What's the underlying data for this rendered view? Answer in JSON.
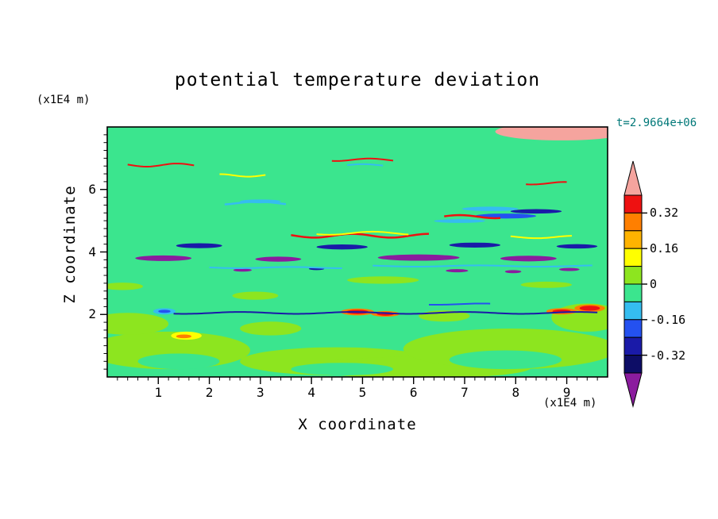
{
  "figure": {
    "title": "potential temperature deviation",
    "time_label": "t=2.9664e+06",
    "time_label_color": "#007878",
    "x_axis": {
      "label": "X coordinate",
      "unit_label": "(x1E4 m)",
      "min": 0,
      "max": 9.8,
      "major_ticks": [
        "1",
        "2",
        "3",
        "4",
        "5",
        "6",
        "7",
        "8",
        "9"
      ],
      "major_tick_values": [
        1,
        2,
        3,
        4,
        5,
        6,
        7,
        8,
        9
      ],
      "minor_step": 0.2
    },
    "z_axis": {
      "label": "Z coordinate",
      "unit_label": "(x1E4 m)",
      "min": 0,
      "max": 8,
      "major_ticks": [
        "2",
        "4",
        "6"
      ],
      "major_tick_values": [
        2,
        4,
        6
      ],
      "minor_step": 0.25
    },
    "colorbar": {
      "labels": [
        "0.32",
        "0.16",
        "0",
        "-0.16",
        "-0.32"
      ],
      "segment_colors_top_to_bottom": [
        "red",
        "orange",
        "amber",
        "yellow",
        "chartreuse",
        "mint",
        "cyan",
        "blue",
        "navy",
        "indigo"
      ],
      "arrow_top": "pink",
      "arrow_bottom": "purple"
    }
  },
  "palette": {
    "pink": "#F5A49E",
    "red": "#EE1111",
    "orange": "#FF7F00",
    "amber": "#FFB300",
    "yellow": "#FFFF00",
    "chartreuse": "#8DE51F",
    "mint": "#3BE58E",
    "cyan": "#35BDF0",
    "blue": "#2451F0",
    "navy": "#1A1AA8",
    "indigo": "#0D0D66",
    "purple": "#8B1C9E"
  },
  "chart_data": {
    "type": "heatmap",
    "title": "potential temperature deviation",
    "xlabel": "X coordinate (x1E4 m)",
    "ylabel": "Z coordinate (x1E4 m)",
    "time_annotation": "t=2.9664e+06",
    "x_range": [
      0,
      9.8
    ],
    "z_range": [
      0,
      8
    ],
    "contour_levels": [
      -0.4,
      -0.32,
      -0.24,
      -0.16,
      -0.08,
      0,
      0.08,
      0.16,
      0.24,
      0.32,
      0.4
    ],
    "level_colors_low_to_high": [
      "purple",
      "indigo",
      "navy",
      "blue",
      "cyan",
      "mint",
      "chartreuse",
      "yellow",
      "amber",
      "orange",
      "red",
      "pink"
    ],
    "description": "Vertical cross-section of potential temperature deviation: wavy alternating pink (>0.4) and purple (<-0.4) gravity-wave layers above z=4.4, a strong blue negative band near z=4.1, and near-zero green (mint/chartreuse) field below z=3.5 with small warm/cold anomalies near z=2.",
    "field": {
      "base_color": "mint",
      "layers": [
        {
          "color": "purple",
          "to": 7.68,
          "amp": 0.12,
          "wl": 2.6,
          "ph": 0.5
        },
        {
          "color": "pink",
          "to": 7.34,
          "amp": 0.13,
          "wl": 2.2,
          "ph": 2.1
        },
        {
          "color": "purple",
          "to": 7.0,
          "amp": 0.12,
          "wl": 2.9,
          "ph": 4.0
        },
        {
          "color": "pink",
          "to": 6.66,
          "amp": 0.14,
          "wl": 1.9,
          "ph": 1.2
        },
        {
          "color": "purple",
          "to": 6.32,
          "amp": 0.12,
          "wl": 2.4,
          "ph": 5.3
        },
        {
          "color": "pink",
          "to": 5.99,
          "amp": 0.15,
          "wl": 2.1,
          "ph": 3.3
        },
        {
          "color": "purple",
          "to": 5.66,
          "amp": 0.13,
          "wl": 2.7,
          "ph": 0.2
        },
        {
          "color": "pink",
          "to": 5.33,
          "amp": 0.14,
          "wl": 1.8,
          "ph": 4.6
        },
        {
          "color": "purple",
          "to": 5.0,
          "amp": 0.13,
          "wl": 2.3,
          "ph": 2.8
        },
        {
          "color": "pink",
          "to": 4.7,
          "amp": 0.12,
          "wl": 2.0,
          "ph": 5.8
        },
        {
          "color": "purple",
          "to": 4.45,
          "amp": 0.08,
          "wl": 2.5,
          "ph": 1.6
        },
        {
          "color": "cyan",
          "to": 4.38,
          "amp": 0.04,
          "wl": 3.0,
          "ph": 0.9
        },
        {
          "color": "blue",
          "to": 4.07,
          "amp": 0.04,
          "wl": 3.2,
          "ph": 2.2
        },
        {
          "color": "cyan",
          "to": 3.99,
          "amp": 0.03,
          "wl": 2.8,
          "ph": 3.9
        },
        {
          "color": "pink",
          "to": 3.63,
          "amp": 0.07,
          "wl": 2.4,
          "ph": 1.1
        },
        {
          "color": "chartreuse",
          "to": 3.54,
          "amp": 0.05,
          "wl": 2.6,
          "ph": 4.8
        }
      ],
      "spots": [
        {
          "color": "pink",
          "x": 8.9,
          "z": 7.85,
          "rx": 1.3,
          "rz": 0.28
        },
        {
          "color": "chartreuse",
          "x": 1.2,
          "z": 0.85,
          "rx": 1.6,
          "rz": 0.6
        },
        {
          "color": "chartreuse",
          "x": 0.4,
          "z": 1.7,
          "rx": 0.8,
          "rz": 0.35
        },
        {
          "color": "chartreuse",
          "x": 4.5,
          "z": 0.5,
          "rx": 1.9,
          "rz": 0.45
        },
        {
          "color": "chartreuse",
          "x": 6.1,
          "z": 0.3,
          "rx": 2.2,
          "rz": 0.35
        },
        {
          "color": "chartreuse",
          "x": 7.9,
          "z": 0.9,
          "rx": 2.1,
          "rz": 0.65
        },
        {
          "color": "chartreuse",
          "x": 9.4,
          "z": 1.9,
          "rx": 0.7,
          "rz": 0.45
        },
        {
          "color": "chartreuse",
          "x": 3.2,
          "z": 1.55,
          "rx": 0.6,
          "rz": 0.22
        },
        {
          "color": "chartreuse",
          "x": 6.6,
          "z": 1.95,
          "rx": 0.5,
          "rz": 0.18
        },
        {
          "color": "chartreuse",
          "x": 2.9,
          "z": 2.6,
          "rx": 0.45,
          "rz": 0.13
        },
        {
          "color": "chartreuse",
          "x": 5.4,
          "z": 3.1,
          "rx": 0.7,
          "rz": 0.12
        },
        {
          "color": "chartreuse",
          "x": 8.6,
          "z": 2.95,
          "rx": 0.5,
          "rz": 0.1
        },
        {
          "color": "chartreuse",
          "x": 0.3,
          "z": 2.9,
          "rx": 0.4,
          "rz": 0.12
        },
        {
          "color": "mint",
          "x": 1.4,
          "z": 0.5,
          "rx": 0.8,
          "rz": 0.25
        },
        {
          "color": "mint",
          "x": 4.6,
          "z": 0.25,
          "rx": 1.0,
          "rz": 0.2
        },
        {
          "color": "mint",
          "x": 7.8,
          "z": 0.55,
          "rx": 1.1,
          "rz": 0.3
        },
        {
          "color": "purple",
          "x": 1.1,
          "z": 3.8,
          "rx": 0.55,
          "rz": 0.09
        },
        {
          "color": "purple",
          "x": 3.35,
          "z": 3.77,
          "rx": 0.45,
          "rz": 0.08
        },
        {
          "color": "purple",
          "x": 6.1,
          "z": 3.82,
          "rx": 0.8,
          "rz": 0.1
        },
        {
          "color": "purple",
          "x": 8.25,
          "z": 3.79,
          "rx": 0.55,
          "rz": 0.09
        },
        {
          "color": "navy",
          "x": 1.8,
          "z": 4.2,
          "rx": 0.45,
          "rz": 0.08
        },
        {
          "color": "navy",
          "x": 4.6,
          "z": 4.16,
          "rx": 0.5,
          "rz": 0.08
        },
        {
          "color": "navy",
          "x": 7.2,
          "z": 4.22,
          "rx": 0.5,
          "rz": 0.08
        },
        {
          "color": "navy",
          "x": 9.2,
          "z": 4.18,
          "rx": 0.4,
          "rz": 0.07
        },
        {
          "color": "cyan",
          "x": 7.5,
          "z": 5.38,
          "rx": 0.55,
          "rz": 0.07
        },
        {
          "color": "cyan",
          "x": 3.0,
          "z": 5.62,
          "rx": 0.4,
          "rz": 0.06
        },
        {
          "color": "cyan",
          "x": 6.9,
          "z": 4.99,
          "rx": 0.5,
          "rz": 0.06
        },
        {
          "color": "blue",
          "x": 7.8,
          "z": 5.15,
          "rx": 0.6,
          "rz": 0.08
        },
        {
          "color": "navy",
          "x": 8.4,
          "z": 5.3,
          "rx": 0.5,
          "rz": 0.07
        },
        {
          "color": "purple",
          "x": 2.65,
          "z": 3.42,
          "rx": 0.18,
          "rz": 0.05
        },
        {
          "color": "purple",
          "x": 6.85,
          "z": 3.4,
          "rx": 0.22,
          "rz": 0.05
        },
        {
          "color": "purple",
          "x": 7.95,
          "z": 3.37,
          "rx": 0.16,
          "rz": 0.05
        },
        {
          "color": "purple",
          "x": 9.05,
          "z": 3.44,
          "rx": 0.2,
          "rz": 0.05
        },
        {
          "color": "navy",
          "x": 4.1,
          "z": 3.46,
          "rx": 0.15,
          "rz": 0.04
        },
        {
          "color": "orange",
          "x": 4.9,
          "z": 2.08,
          "rx": 0.33,
          "rz": 0.11
        },
        {
          "color": "red",
          "x": 4.9,
          "z": 2.08,
          "rx": 0.22,
          "rz": 0.07
        },
        {
          "color": "orange",
          "x": 5.45,
          "z": 2.02,
          "rx": 0.28,
          "rz": 0.09
        },
        {
          "color": "red",
          "x": 5.45,
          "z": 2.02,
          "rx": 0.17,
          "rz": 0.06
        },
        {
          "color": "orange",
          "x": 8.9,
          "z": 2.1,
          "rx": 0.3,
          "rz": 0.1
        },
        {
          "color": "red",
          "x": 8.9,
          "z": 2.1,
          "rx": 0.18,
          "rz": 0.06
        },
        {
          "color": "orange",
          "x": 9.45,
          "z": 2.2,
          "rx": 0.3,
          "rz": 0.12
        },
        {
          "color": "red",
          "x": 9.45,
          "z": 2.2,
          "rx": 0.2,
          "rz": 0.08
        },
        {
          "color": "yellow",
          "x": 1.55,
          "z": 1.32,
          "rx": 0.3,
          "rz": 0.13
        },
        {
          "color": "orange",
          "x": 1.5,
          "z": 1.3,
          "rx": 0.15,
          "rz": 0.06
        },
        {
          "color": "cyan",
          "x": 1.12,
          "z": 2.1,
          "rx": 0.22,
          "rz": 0.1
        },
        {
          "color": "blue",
          "x": 1.12,
          "z": 2.1,
          "rx": 0.12,
          "rz": 0.05
        }
      ],
      "streaks": [
        {
          "color": "red",
          "x0": 3.6,
          "x1": 6.3,
          "z": 4.52,
          "amp": 0.06,
          "wl": 1.5,
          "ph": 0.3,
          "w": 2.5
        },
        {
          "color": "yellow",
          "x0": 4.1,
          "x1": 5.9,
          "z": 4.6,
          "amp": 0.05,
          "wl": 1.7,
          "ph": 1.2,
          "w": 2
        },
        {
          "color": "red",
          "x0": 6.6,
          "x1": 7.7,
          "z": 5.13,
          "amp": 0.05,
          "wl": 1.4,
          "ph": 2.0,
          "w": 2.5
        },
        {
          "color": "red",
          "x0": 0.4,
          "x1": 1.7,
          "z": 6.78,
          "amp": 0.05,
          "wl": 1.2,
          "ph": 0.7,
          "w": 2
        },
        {
          "color": "yellow",
          "x0": 2.2,
          "x1": 3.1,
          "z": 6.45,
          "amp": 0.04,
          "wl": 1.1,
          "ph": 1.5,
          "w": 2
        },
        {
          "color": "cyan",
          "x0": 2.3,
          "x1": 3.5,
          "z": 5.56,
          "amp": 0.05,
          "wl": 1.6,
          "ph": 2.6,
          "w": 2.5
        },
        {
          "color": "yellow",
          "x0": 7.9,
          "x1": 9.1,
          "z": 4.48,
          "amp": 0.04,
          "wl": 1.5,
          "ph": 0.9,
          "w": 2
        },
        {
          "color": "red",
          "x0": 8.2,
          "x1": 9.0,
          "z": 6.2,
          "amp": 0.04,
          "wl": 1.3,
          "ph": 2.2,
          "w": 2
        },
        {
          "color": "red",
          "x0": 4.4,
          "x1": 5.6,
          "z": 6.95,
          "amp": 0.04,
          "wl": 1.3,
          "ph": 1.9,
          "w": 2
        },
        {
          "color": "cyan",
          "x0": 4.7,
          "x1": 5.4,
          "z": 6.78,
          "amp": 0.03,
          "wl": 1.2,
          "ph": 0.5,
          "w": 2
        },
        {
          "color": "navy",
          "x0": 1.3,
          "x1": 9.6,
          "z": 2.05,
          "amp": 0.03,
          "wl": 2.2,
          "ph": 0.4,
          "w": 2
        },
        {
          "color": "blue",
          "x0": 6.3,
          "x1": 7.5,
          "z": 2.33,
          "amp": 0.02,
          "wl": 1.8,
          "ph": 1.1,
          "w": 2
        },
        {
          "color": "cyan",
          "x0": 2.0,
          "x1": 4.6,
          "z": 3.5,
          "amp": 0.02,
          "wl": 2.0,
          "ph": 2.9,
          "w": 2
        },
        {
          "color": "cyan",
          "x0": 5.2,
          "x1": 9.5,
          "z": 3.55,
          "amp": 0.02,
          "wl": 2.4,
          "ph": 1.4,
          "w": 2
        }
      ]
    }
  }
}
